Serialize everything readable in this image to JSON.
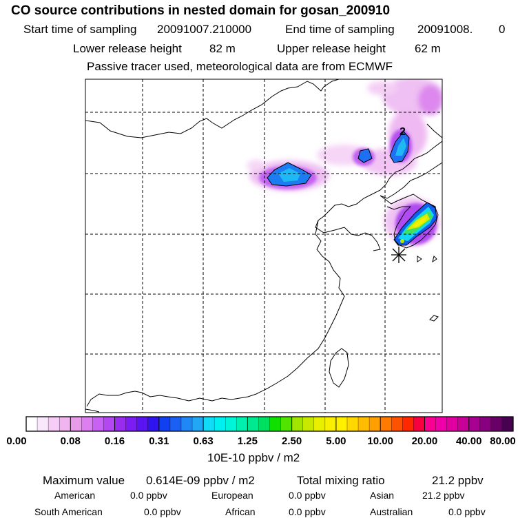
{
  "header": {
    "title": "CO  source contributions in nested domain for gosan_200910",
    "start_time_label": "Start time of sampling",
    "start_time_value": "20091007.210000",
    "end_time_label": "End time of sampling",
    "end_time_value": "20091008.",
    "end_time_suffix": "0",
    "lower_release_label": "Lower release height",
    "lower_release_value": "82 m",
    "upper_release_label": "Upper release height",
    "upper_release_value": "62 m",
    "tracer_note": "Passive tracer used, meteorological data are from ECMWF"
  },
  "map": {
    "contour_label": "2",
    "receptor_marker": "asterisk-icon",
    "colors": {
      "coast": "#000000",
      "grid": "#000000",
      "contour": "#000000"
    }
  },
  "colorbar": {
    "labels": [
      "0.00",
      "0.08",
      "0.16",
      "0.31",
      "0.63",
      "1.25",
      "2.50",
      "5.00",
      "10.00",
      "20.00",
      "40.00",
      "80.00"
    ],
    "colors": [
      "#ffffff",
      "#fbe7fb",
      "#f6cdf6",
      "#f0b4f0",
      "#e89be8",
      "#dd7ff0",
      "#c862f5",
      "#b347f2",
      "#9a2cf0",
      "#7a1cf2",
      "#5a14f2",
      "#2f14f0",
      "#1040f0",
      "#1a60f2",
      "#1f88f4",
      "#20a8f4",
      "#10dcf8",
      "#00f0f0",
      "#00f4d8",
      "#00f0b0",
      "#00e890",
      "#00e060",
      "#10e000",
      "#50e400",
      "#a0e400",
      "#c8e800",
      "#e8f000",
      "#f8f000",
      "#fff000",
      "#ffd800",
      "#ffbc00",
      "#ffa000",
      "#ff7a00",
      "#ff5200",
      "#ff2800",
      "#f80040",
      "#f80090",
      "#f000a8",
      "#e000a0",
      "#c80098",
      "#a80090",
      "#880080",
      "#680068",
      "#480050"
    ],
    "units": "10E-10 ppbv / m2"
  },
  "stats": {
    "max_label": "Maximum value",
    "max_value": "0.614E-09 ppbv / m2",
    "total_label": "Total mixing ratio",
    "total_value": "21.2 ppbv",
    "regions": [
      {
        "name": "American",
        "value": "0.0 ppbv"
      },
      {
        "name": "European",
        "value": "0.0 ppbv"
      },
      {
        "name": "Asian",
        "value": "21.2 ppbv"
      },
      {
        "name": "South American",
        "value": "0.0 ppbv"
      },
      {
        "name": "African",
        "value": "0.0 ppbv"
      },
      {
        "name": "Australian",
        "value": "0.0 ppbv"
      }
    ]
  }
}
